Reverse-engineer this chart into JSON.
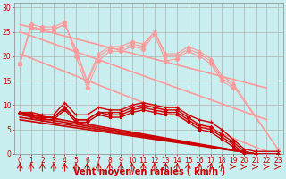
{
  "bg_color": "#c8eef0",
  "grid_color": "#b0b0b0",
  "xlabel": "Vent moyen/en rafales ( km/h )",
  "xlim_min": -0.5,
  "xlim_max": 23.5,
  "ylim": [
    0,
    31
  ],
  "yticks": [
    0,
    5,
    10,
    15,
    20,
    25,
    30
  ],
  "xticks": [
    0,
    1,
    2,
    3,
    4,
    5,
    6,
    7,
    8,
    9,
    10,
    11,
    12,
    13,
    14,
    15,
    16,
    17,
    18,
    19,
    20,
    21,
    22,
    23
  ],
  "light_series": [
    {
      "x": [
        0,
        1,
        2,
        3,
        4,
        5,
        6,
        7,
        8,
        9,
        10,
        11,
        12,
        13,
        14,
        15,
        16,
        17,
        18,
        19
      ],
      "y": [
        18.5,
        26.5,
        26.0,
        26.0,
        27.0,
        20.0,
        13.5,
        19.0,
        21.0,
        21.0,
        22.0,
        21.5,
        24.5,
        19.0,
        19.5,
        21.0,
        20.0,
        18.5,
        15.0,
        13.5
      ],
      "color": "#ff9999",
      "marker": "D",
      "markersize": 2.5,
      "linewidth": 0.8
    },
    {
      "x": [
        0,
        1,
        2,
        3,
        4,
        5,
        6,
        7,
        8,
        9,
        10,
        11,
        12,
        13,
        14,
        15,
        16,
        17,
        18,
        19,
        23
      ],
      "y": [
        18.5,
        26.0,
        25.5,
        25.5,
        26.5,
        21.0,
        14.5,
        20.0,
        21.5,
        21.5,
        22.5,
        22.0,
        25.0,
        20.0,
        20.0,
        21.5,
        20.5,
        19.0,
        15.5,
        14.0,
        1.0
      ],
      "color": "#ff9999",
      "marker": "x",
      "markersize": 3,
      "linewidth": 0.8
    },
    {
      "x": [
        0,
        1,
        2,
        3,
        4,
        5,
        6,
        7,
        8,
        9,
        10,
        11,
        12,
        13,
        14,
        15,
        16,
        17,
        18,
        19,
        23
      ],
      "y": [
        18.5,
        26.0,
        25.5,
        25.5,
        26.5,
        21.5,
        15.0,
        20.5,
        22.0,
        22.0,
        23.0,
        22.5,
        25.0,
        20.5,
        20.5,
        22.0,
        21.0,
        19.5,
        16.0,
        14.5,
        1.0
      ],
      "color": "#ff9999",
      "marker": "^",
      "markersize": 3,
      "linewidth": 0.8
    }
  ],
  "light_trend_lines": [
    {
      "x0": 0,
      "y0": 26.5,
      "x1": 22,
      "y1": 13.5,
      "color": "#ff9999",
      "linewidth": 1.2
    },
    {
      "x0": 0,
      "y0": 25.0,
      "x1": 22,
      "y1": 7.0,
      "color": "#ff9999",
      "linewidth": 1.2
    },
    {
      "x0": 0,
      "y0": 20.5,
      "x1": 22,
      "y1": 0.5,
      "color": "#ff9999",
      "linewidth": 1.2
    }
  ],
  "dark_series": [
    {
      "x": [
        0,
        1,
        2,
        3,
        4,
        5,
        6,
        7,
        8,
        9,
        10,
        11,
        12,
        13,
        14,
        15,
        16,
        17,
        18,
        19,
        20,
        21,
        23
      ],
      "y": [
        8.5,
        8.5,
        8.0,
        8.0,
        10.5,
        8.0,
        8.0,
        9.5,
        9.0,
        9.0,
        10.0,
        10.5,
        10.0,
        9.5,
        9.5,
        8.0,
        7.0,
        6.5,
        5.0,
        3.0,
        1.0,
        0.5,
        0.5
      ],
      "color": "#cc0000",
      "marker": "+",
      "markersize": 3,
      "linewidth": 1.0
    },
    {
      "x": [
        0,
        1,
        2,
        3,
        4,
        5,
        6,
        7,
        8,
        9,
        10,
        11,
        12,
        13,
        14,
        15,
        16,
        17,
        18,
        19,
        20,
        21,
        23
      ],
      "y": [
        8.5,
        8.0,
        7.5,
        7.5,
        9.5,
        7.0,
        7.0,
        8.5,
        8.5,
        8.5,
        9.5,
        10.0,
        9.5,
        9.0,
        9.0,
        7.5,
        6.0,
        5.5,
        4.0,
        2.5,
        0.5,
        0.0,
        0.0
      ],
      "color": "#cc0000",
      "marker": "D",
      "markersize": 2,
      "linewidth": 1.0
    },
    {
      "x": [
        0,
        1,
        2,
        3,
        4,
        5,
        6,
        7,
        8,
        9,
        10,
        11,
        12,
        13,
        14,
        15,
        16,
        17,
        18,
        19,
        20,
        21,
        23
      ],
      "y": [
        8.5,
        8.0,
        7.5,
        7.5,
        9.5,
        7.0,
        7.0,
        8.5,
        8.0,
        8.0,
        9.0,
        9.5,
        9.0,
        8.5,
        8.5,
        7.0,
        5.5,
        5.0,
        3.5,
        2.0,
        0.0,
        0.0,
        0.0
      ],
      "color": "#cc0000",
      "marker": "^",
      "markersize": 2.5,
      "linewidth": 1.0
    },
    {
      "x": [
        0,
        1,
        2,
        3,
        4,
        5,
        6,
        7,
        8,
        9,
        10,
        11,
        12,
        13,
        14,
        15,
        16,
        17,
        18,
        19,
        20
      ],
      "y": [
        8.5,
        7.5,
        7.0,
        7.0,
        9.0,
        6.5,
        6.5,
        8.0,
        7.5,
        7.5,
        8.5,
        9.0,
        8.5,
        8.0,
        8.0,
        6.5,
        5.0,
        4.5,
        3.0,
        1.5,
        0.0
      ],
      "color": "#cc0000",
      "marker": "s",
      "markersize": 2,
      "linewidth": 1.0
    }
  ],
  "dark_trend_lines": [
    {
      "x0": 0,
      "y0": 8.5,
      "x1": 21,
      "y1": 0.0,
      "color": "#cc0000",
      "linewidth": 1.2
    },
    {
      "x0": 0,
      "y0": 8.0,
      "x1": 21,
      "y1": 0.0,
      "color": "#cc0000",
      "linewidth": 1.2
    },
    {
      "x0": 0,
      "y0": 7.5,
      "x1": 21,
      "y1": 0.0,
      "color": "#cc0000",
      "linewidth": 1.2
    },
    {
      "x0": 0,
      "y0": 7.0,
      "x1": 21,
      "y1": 0.0,
      "color": "#cc0000",
      "linewidth": 1.2
    }
  ],
  "axis_label_fontsize": 7,
  "tick_fontsize": 5.5
}
